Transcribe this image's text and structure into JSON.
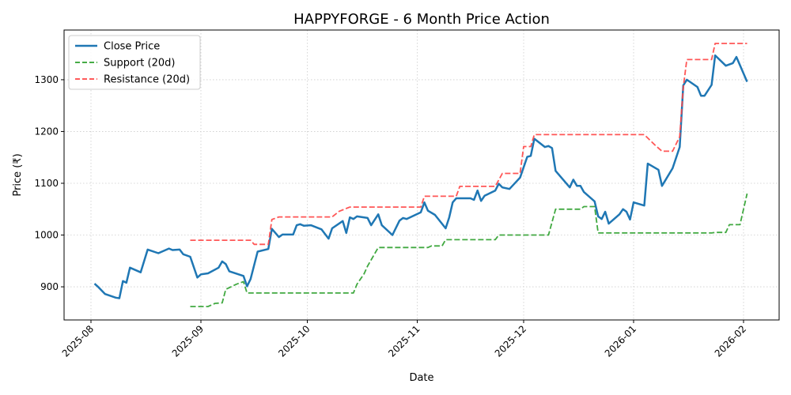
{
  "chart_data": {
    "type": "line",
    "title": "HAPPYFORGE - 6 Month Price Action",
    "xlabel": "Date",
    "ylabel": "Price (₹)",
    "xlim": [
      "2025-07-24",
      "2026-02-12"
    ],
    "ylim": [
      836,
      1396
    ],
    "x_ticks": [
      "2025-08-01",
      "2025-09-01",
      "2025-10-01",
      "2025-11-01",
      "2025-12-01",
      "2026-01-01",
      "2026-02-01"
    ],
    "x_tick_labels": [
      "2025-08",
      "2025-09",
      "2025-10",
      "2025-11",
      "2025-12",
      "2026-01",
      "2026-02"
    ],
    "y_ticks": [
      900,
      1000,
      1100,
      1200,
      1300
    ],
    "grid": true,
    "legend_position": "top-left",
    "series": [
      {
        "name": "Close Price",
        "color": "#1f77b4",
        "style": "solid",
        "points": [
          [
            "2025-08-02",
            906
          ],
          [
            "2025-08-03",
            900
          ],
          [
            "2025-08-05",
            886
          ],
          [
            "2025-08-08",
            879
          ],
          [
            "2025-08-09",
            878
          ],
          [
            "2025-08-10",
            911
          ],
          [
            "2025-08-11",
            908
          ],
          [
            "2025-08-12",
            937
          ],
          [
            "2025-08-15",
            928
          ],
          [
            "2025-08-17",
            972
          ],
          [
            "2025-08-20",
            965
          ],
          [
            "2025-08-23",
            974
          ],
          [
            "2025-08-24",
            971
          ],
          [
            "2025-08-26",
            972
          ],
          [
            "2025-08-27",
            963
          ],
          [
            "2025-08-29",
            958
          ],
          [
            "2025-08-31",
            918
          ],
          [
            "2025-09-01",
            924
          ],
          [
            "2025-09-03",
            926
          ],
          [
            "2025-09-06",
            937
          ],
          [
            "2025-09-07",
            949
          ],
          [
            "2025-09-08",
            944
          ],
          [
            "2025-09-09",
            930
          ],
          [
            "2025-09-13",
            921
          ],
          [
            "2025-09-14",
            901
          ],
          [
            "2025-09-15",
            915
          ],
          [
            "2025-09-17",
            968
          ],
          [
            "2025-09-20",
            973
          ],
          [
            "2025-09-21",
            1012
          ],
          [
            "2025-09-23",
            996
          ],
          [
            "2025-09-24",
            1001
          ],
          [
            "2025-09-27",
            1001
          ],
          [
            "2025-09-28",
            1019
          ],
          [
            "2025-09-29",
            1021
          ],
          [
            "2025-09-30",
            1018
          ],
          [
            "2025-10-02",
            1019
          ],
          [
            "2025-10-05",
            1011
          ],
          [
            "2025-10-07",
            993
          ],
          [
            "2025-10-08",
            1013
          ],
          [
            "2025-10-11",
            1027
          ],
          [
            "2025-10-12",
            1004
          ],
          [
            "2025-10-13",
            1034
          ],
          [
            "2025-10-14",
            1031
          ],
          [
            "2025-10-15",
            1036
          ],
          [
            "2025-10-18",
            1033
          ],
          [
            "2025-10-19",
            1019
          ],
          [
            "2025-10-21",
            1040
          ],
          [
            "2025-10-22",
            1019
          ],
          [
            "2025-10-25",
            1000
          ],
          [
            "2025-10-27",
            1028
          ],
          [
            "2025-10-28",
            1033
          ],
          [
            "2025-10-29",
            1031
          ],
          [
            "2025-11-02",
            1044
          ],
          [
            "2025-11-03",
            1063
          ],
          [
            "2025-11-04",
            1047
          ],
          [
            "2025-11-06",
            1039
          ],
          [
            "2025-11-09",
            1013
          ],
          [
            "2025-11-10",
            1034
          ],
          [
            "2025-11-11",
            1063
          ],
          [
            "2025-11-12",
            1071
          ],
          [
            "2025-11-16",
            1071
          ],
          [
            "2025-11-17",
            1068
          ],
          [
            "2025-11-18",
            1086
          ],
          [
            "2025-11-19",
            1066
          ],
          [
            "2025-11-20",
            1076
          ],
          [
            "2025-11-23",
            1086
          ],
          [
            "2025-11-24",
            1099
          ],
          [
            "2025-11-25",
            1092
          ],
          [
            "2025-11-27",
            1089
          ],
          [
            "2025-11-30",
            1111
          ],
          [
            "2025-12-01",
            1131
          ],
          [
            "2025-12-02",
            1151
          ],
          [
            "2025-12-03",
            1153
          ],
          [
            "2025-12-04",
            1186
          ],
          [
            "2025-12-07",
            1170
          ],
          [
            "2025-12-08",
            1172
          ],
          [
            "2025-12-09",
            1168
          ],
          [
            "2025-12-10",
            1124
          ],
          [
            "2025-12-14",
            1092
          ],
          [
            "2025-12-15",
            1107
          ],
          [
            "2025-12-16",
            1095
          ],
          [
            "2025-12-17",
            1095
          ],
          [
            "2025-12-18",
            1083
          ],
          [
            "2025-12-21",
            1065
          ],
          [
            "2025-12-22",
            1036
          ],
          [
            "2025-12-23",
            1031
          ],
          [
            "2025-12-24",
            1045
          ],
          [
            "2025-12-25",
            1022
          ],
          [
            "2025-12-28",
            1040
          ],
          [
            "2025-12-29",
            1050
          ],
          [
            "2025-12-30",
            1045
          ],
          [
            "2025-12-31",
            1030
          ],
          [
            "2026-01-01",
            1063
          ],
          [
            "2026-01-04",
            1057
          ],
          [
            "2026-01-05",
            1138
          ],
          [
            "2026-01-07",
            1130
          ],
          [
            "2026-01-08",
            1126
          ],
          [
            "2026-01-09",
            1095
          ],
          [
            "2026-01-12",
            1129
          ],
          [
            "2026-01-14",
            1170
          ],
          [
            "2026-01-15",
            1289
          ],
          [
            "2026-01-16",
            1300
          ],
          [
            "2026-01-19",
            1286
          ],
          [
            "2026-01-20",
            1269
          ],
          [
            "2026-01-21",
            1269
          ],
          [
            "2026-01-23",
            1290
          ],
          [
            "2026-01-24",
            1347
          ],
          [
            "2026-01-27",
            1327
          ],
          [
            "2026-01-29",
            1332
          ],
          [
            "2026-01-30",
            1344
          ],
          [
            "2026-02-02",
            1296
          ]
        ]
      },
      {
        "name": "Support (20d)",
        "color": "#2ca02c",
        "style": "dashed",
        "points": [
          [
            "2025-08-29",
            862
          ],
          [
            "2025-09-03",
            862
          ],
          [
            "2025-09-05",
            868
          ],
          [
            "2025-09-07",
            869
          ],
          [
            "2025-09-08",
            895
          ],
          [
            "2025-09-11",
            905
          ],
          [
            "2025-09-13",
            910
          ],
          [
            "2025-09-14",
            888
          ],
          [
            "2025-10-14",
            888
          ],
          [
            "2025-10-15",
            905
          ],
          [
            "2025-10-17",
            925
          ],
          [
            "2025-10-18",
            940
          ],
          [
            "2025-10-21",
            976
          ],
          [
            "2025-11-04",
            976
          ],
          [
            "2025-11-05",
            979
          ],
          [
            "2025-11-08",
            979
          ],
          [
            "2025-11-09",
            991
          ],
          [
            "2025-11-23",
            991
          ],
          [
            "2025-11-24",
            1000
          ],
          [
            "2025-12-08",
            1000
          ],
          [
            "2025-12-10",
            1050
          ],
          [
            "2025-12-17",
            1050
          ],
          [
            "2025-12-18",
            1055
          ],
          [
            "2025-12-21",
            1055
          ],
          [
            "2025-12-22",
            1004
          ],
          [
            "2026-01-23",
            1004
          ],
          [
            "2026-01-24",
            1005
          ],
          [
            "2026-01-27",
            1005
          ],
          [
            "2026-01-28",
            1020
          ],
          [
            "2026-01-31",
            1020
          ],
          [
            "2026-02-02",
            1080
          ]
        ]
      },
      {
        "name": "Resistance (20d)",
        "color": "#ff4444",
        "style": "dashed",
        "points": [
          [
            "2025-08-29",
            990
          ],
          [
            "2025-09-15",
            990
          ],
          [
            "2025-09-16",
            982
          ],
          [
            "2025-09-20",
            982
          ],
          [
            "2025-09-21",
            1030
          ],
          [
            "2025-09-23",
            1035
          ],
          [
            "2025-10-08",
            1035
          ],
          [
            "2025-10-10",
            1046
          ],
          [
            "2025-10-13",
            1054
          ],
          [
            "2025-11-02",
            1054
          ],
          [
            "2025-11-03",
            1075
          ],
          [
            "2025-11-12",
            1075
          ],
          [
            "2025-11-13",
            1094
          ],
          [
            "2025-11-23",
            1094
          ],
          [
            "2025-11-25",
            1119
          ],
          [
            "2025-11-30",
            1119
          ],
          [
            "2025-12-01",
            1171
          ],
          [
            "2025-12-03",
            1171
          ],
          [
            "2025-12-04",
            1194
          ],
          [
            "2026-01-04",
            1194
          ],
          [
            "2026-01-07",
            1174
          ],
          [
            "2026-01-09",
            1162
          ],
          [
            "2026-01-12",
            1162
          ],
          [
            "2026-01-14",
            1190
          ],
          [
            "2026-01-15",
            1285
          ],
          [
            "2026-01-16",
            1339
          ],
          [
            "2026-01-23",
            1339
          ],
          [
            "2026-01-24",
            1370
          ],
          [
            "2026-02-02",
            1370
          ]
        ]
      }
    ]
  }
}
